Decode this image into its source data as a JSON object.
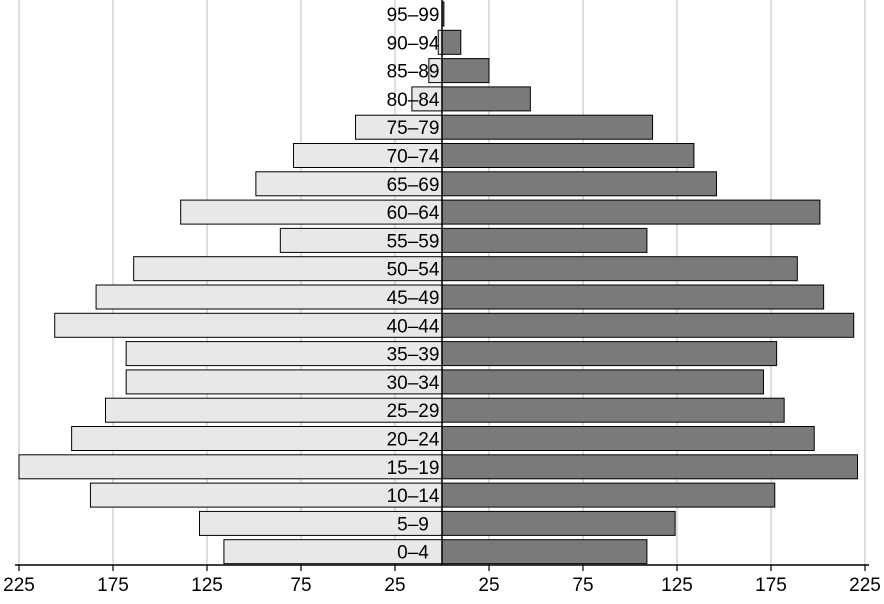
{
  "chart_data": {
    "type": "bar",
    "orientation": "horizontal-diverging",
    "title": "",
    "xlabel": "",
    "ylabel": "",
    "xlim": [
      -225,
      225
    ],
    "x_ticks": [
      {
        "value": -225,
        "label": "225"
      },
      {
        "value": -175,
        "label": "175"
      },
      {
        "value": -125,
        "label": "125"
      },
      {
        "value": -75,
        "label": "75"
      },
      {
        "value": -25,
        "label": "25"
      },
      {
        "value": 25,
        "label": "25"
      },
      {
        "value": 75,
        "label": "75"
      },
      {
        "value": 125,
        "label": "125"
      },
      {
        "value": 175,
        "label": "175"
      },
      {
        "value": 225,
        "label": "225"
      }
    ],
    "grid": "vertical",
    "legend": "none",
    "categories": [
      "0–4",
      "5–9",
      "10–14",
      "15–19",
      "20–24",
      "25–29",
      "30–34",
      "35–39",
      "40–44",
      "45–49",
      "50–54",
      "55–59",
      "60–64",
      "65–69",
      "70–74",
      "75–79",
      "80–84",
      "85–89",
      "90–94",
      "95–99"
    ],
    "series": [
      {
        "name": "left",
        "side": "left",
        "color": "#e8e8e8",
        "values": [
          116,
          129,
          187,
          225,
          197,
          179,
          168,
          168,
          206,
          184,
          164,
          86,
          139,
          99,
          79,
          46,
          16,
          7,
          2,
          0
        ]
      },
      {
        "name": "right",
        "side": "right",
        "color": "#7a7a7a",
        "values": [
          109,
          124,
          177,
          221,
          198,
          182,
          171,
          178,
          219,
          203,
          189,
          109,
          201,
          146,
          134,
          112,
          47,
          25,
          10,
          1
        ]
      }
    ]
  }
}
